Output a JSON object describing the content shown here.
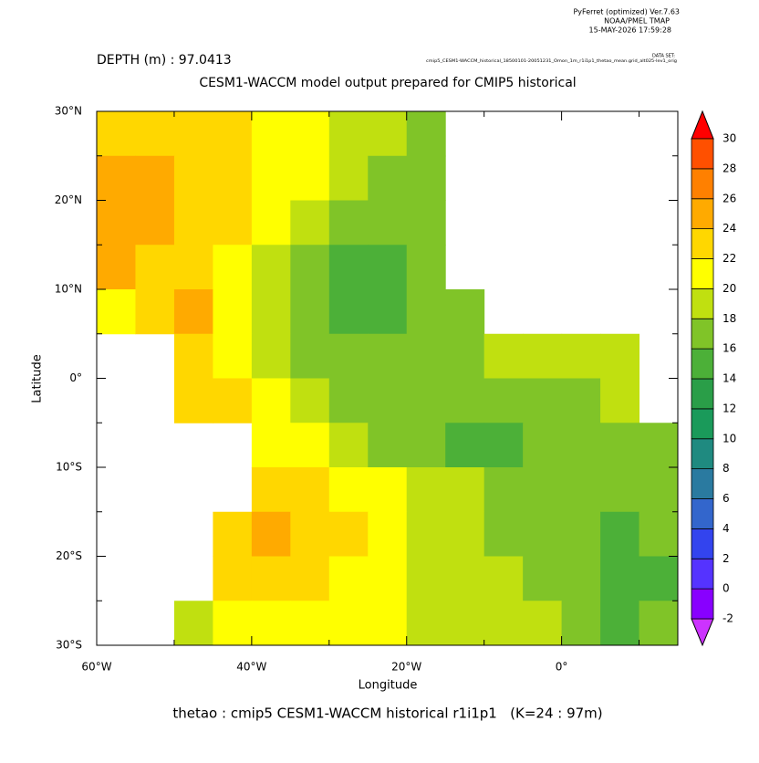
{
  "chart_data": {
    "type": "shaded",
    "header": [
      "PyFerret (optimized) Ver.7.63",
      "NOAA/PMEL TMAP",
      "15-MAY-2026 17:59:28"
    ],
    "dataset_label": "DATA SET:",
    "dataset": "cmip5_CESM1-WACCM_historical_18500101-20051231_Omon_1m_r1i1p1_thetao_mean.grid_alt025-lev1_orig",
    "depth": "DEPTH (m) : 97.0413",
    "title": "CESM1-WACCM model output prepared for CMIP5 historical",
    "x_label": "Longitude",
    "y_label": "Latitude",
    "footer": "thetao : cmip5 CESM1-WACCM historical r1i1p1   (K=24 : 97m)",
    "xlim": [
      -60,
      15
    ],
    "ylim": [
      -30,
      30
    ],
    "xticks": [
      {
        "value": -60,
        "label": "60°W"
      },
      {
        "value": -40,
        "label": "40°W"
      },
      {
        "value": -20,
        "label": "20°W"
      },
      {
        "value": 0,
        "label": "0°"
      }
    ],
    "yticks": [
      {
        "value": 30,
        "label": "30°N"
      },
      {
        "value": 20,
        "label": "20°N"
      },
      {
        "value": 10,
        "label": "10°N"
      },
      {
        "value": 0,
        "label": "0°"
      },
      {
        "value": -10,
        "label": "10°S"
      },
      {
        "value": -20,
        "label": "20°S"
      },
      {
        "value": -30,
        "label": "30°S"
      }
    ],
    "field": {
      "lon": [
        -57.5,
        -52.5,
        -47.5,
        -42.5,
        -37.5,
        -32.5,
        -27.5,
        -22.5,
        -17.5,
        -12.5,
        -7.5,
        -2.5,
        2.5,
        7.5,
        12.5
      ],
      "lat": [
        27.5,
        22.5,
        17.5,
        12.5,
        7.5,
        2.5,
        -2.5,
        -7.5,
        -12.5,
        -17.5,
        -22.5,
        -27.5
      ],
      "values": [
        [
          23,
          23,
          22,
          22,
          21,
          20,
          19,
          18,
          17,
          null,
          null,
          null,
          null,
          null,
          null
        ],
        [
          25,
          25,
          23,
          22,
          21,
          20,
          18,
          17,
          17,
          null,
          null,
          null,
          null,
          null,
          null
        ],
        [
          25,
          24,
          23,
          22,
          20,
          19,
          17,
          17,
          17,
          null,
          null,
          null,
          null,
          null,
          null
        ],
        [
          24,
          23,
          22,
          21,
          19,
          16,
          15,
          15,
          16,
          null,
          null,
          null,
          null,
          null,
          null
        ],
        [
          20,
          22,
          24,
          21,
          19,
          16,
          15,
          15,
          16,
          17,
          null,
          null,
          null,
          null,
          null
        ],
        [
          null,
          null,
          22,
          21,
          19,
          17,
          16,
          16,
          16,
          17,
          18,
          18,
          18,
          18,
          null
        ],
        [
          null,
          null,
          23,
          22,
          20,
          18,
          17,
          16,
          16,
          16,
          17,
          17,
          17,
          18,
          null
        ],
        [
          null,
          null,
          null,
          null,
          21,
          20,
          18,
          17,
          16,
          15,
          15,
          16,
          17,
          17,
          17
        ],
        [
          null,
          null,
          null,
          null,
          23,
          22,
          21,
          20,
          19,
          18,
          17,
          17,
          17,
          16,
          17
        ],
        [
          null,
          null,
          null,
          23,
          24,
          23,
          22,
          21,
          19,
          18,
          17,
          16,
          16,
          15,
          17
        ],
        [
          null,
          null,
          null,
          22,
          22,
          22,
          21,
          20,
          19,
          18,
          18,
          17,
          16,
          14,
          15
        ],
        [
          null,
          null,
          19,
          21,
          21,
          21,
          20,
          20,
          19,
          18,
          18,
          18,
          17,
          15,
          16
        ]
      ]
    },
    "colorbar": {
      "levels": [
        -2,
        0,
        2,
        4,
        6,
        8,
        10,
        12,
        14,
        16,
        18,
        20,
        22,
        24,
        26,
        28,
        30
      ],
      "colors": [
        "#cc33ff",
        "#8800ff",
        "#5533ff",
        "#3344ee",
        "#3366cc",
        "#2a7aa0",
        "#1f8a80",
        "#1a9a5a",
        "#2a9e48",
        "#4cb038",
        "#80c428",
        "#c0e010",
        "#ffff00",
        "#ffd700",
        "#ffaa00",
        "#ff8000",
        "#ff5000",
        "#ff0000"
      ]
    }
  }
}
